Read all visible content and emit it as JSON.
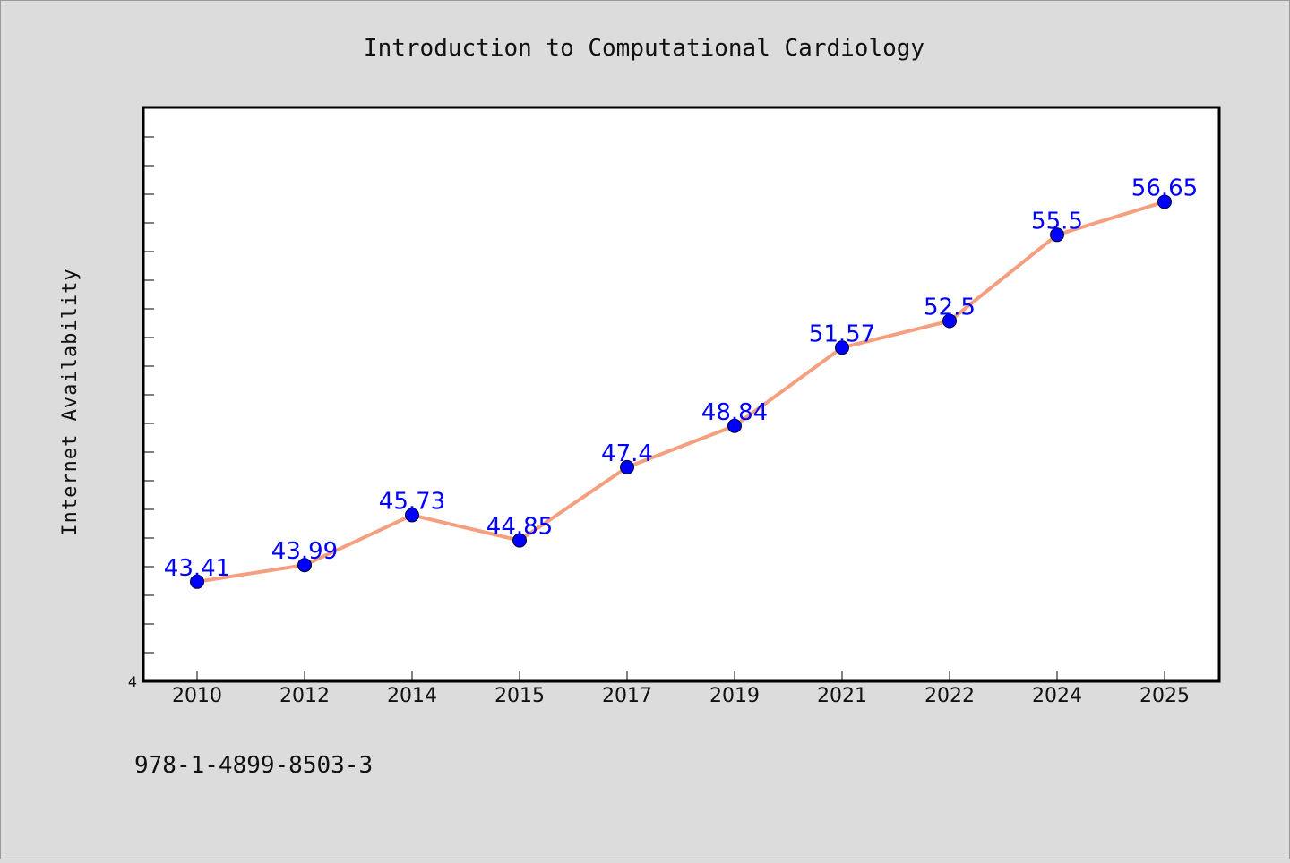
{
  "chart_data": {
    "type": "line",
    "title": "Introduction to Computational Cardiology",
    "xlabel": "",
    "ylabel": "Internet Availability",
    "categories": [
      "2010",
      "2012",
      "2014",
      "2015",
      "2017",
      "2019",
      "2021",
      "2022",
      "2024",
      "2025"
    ],
    "series": [
      {
        "values": [
          43.41,
          43.99,
          45.73,
          44.85,
          47.4,
          48.84,
          51.57,
          52.5,
          55.5,
          56.65
        ]
      }
    ],
    "data_labels": [
      "43.41",
      "43.99",
      "45.73",
      "44.85",
      "47.4",
      "48.84",
      "51.57",
      "52.5",
      "55.5",
      "56.65"
    ],
    "y_tick_label": "4",
    "ylim": [
      39.94,
      59.94
    ],
    "grid": false,
    "colors": {
      "line": "#f4a07f",
      "marker": "#0000ff",
      "labels": "#0000ff"
    }
  },
  "footer_text": "978-1-4899-8503-3"
}
